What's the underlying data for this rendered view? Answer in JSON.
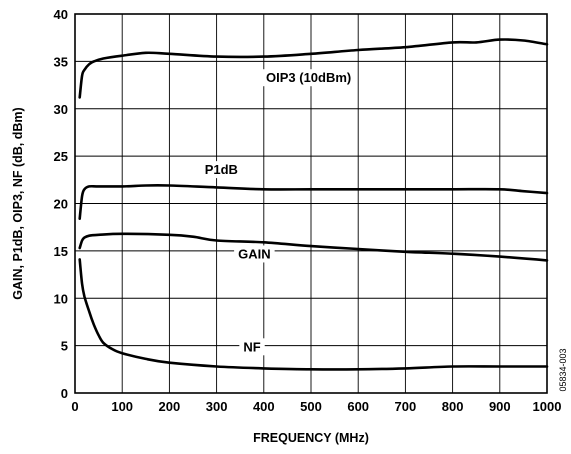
{
  "chart_data": {
    "type": "line",
    "title": "",
    "xlabel": "FREQUENCY (MHz)",
    "ylabel": "GAIN, P1dB, OIP3, NF (dB, dBm)",
    "xlim": [
      0,
      1000
    ],
    "ylim": [
      0,
      40
    ],
    "xticks": [
      "0",
      "100",
      "200",
      "300",
      "400",
      "500",
      "600",
      "700",
      "800",
      "900",
      "1000"
    ],
    "yticks": [
      "0",
      "5",
      "10",
      "15",
      "20",
      "25",
      "30",
      "35",
      "40"
    ],
    "grid": true,
    "legend": "inline labels",
    "figure_id": "05834-003",
    "series": [
      {
        "name": "OIP3 (10dBm)",
        "x": [
          10,
          15,
          20,
          30,
          40,
          60,
          100,
          150,
          200,
          300,
          400,
          500,
          600,
          700,
          800,
          850,
          900,
          950,
          1000
        ],
        "y": [
          31.2,
          33.5,
          34.1,
          34.7,
          35.0,
          35.3,
          35.6,
          35.9,
          35.8,
          35.5,
          35.5,
          35.8,
          36.2,
          36.5,
          37.0,
          37.0,
          37.3,
          37.2,
          36.8
        ]
      },
      {
        "name": "P1dB",
        "x": [
          10,
          15,
          20,
          30,
          50,
          100,
          150,
          200,
          300,
          400,
          500,
          600,
          700,
          800,
          900,
          950,
          1000
        ],
        "y": [
          18.4,
          20.8,
          21.5,
          21.8,
          21.8,
          21.8,
          21.9,
          21.9,
          21.7,
          21.5,
          21.5,
          21.5,
          21.5,
          21.5,
          21.5,
          21.3,
          21.1
        ]
      },
      {
        "name": "GAIN",
        "x": [
          10,
          15,
          20,
          30,
          50,
          100,
          200,
          250,
          300,
          400,
          500,
          600,
          700,
          800,
          900,
          1000
        ],
        "y": [
          15.3,
          16.1,
          16.4,
          16.6,
          16.7,
          16.8,
          16.7,
          16.5,
          16.1,
          15.9,
          15.5,
          15.2,
          14.9,
          14.7,
          14.4,
          14.0
        ]
      },
      {
        "name": "NF",
        "x": [
          10,
          15,
          20,
          30,
          40,
          50,
          60,
          80,
          100,
          150,
          200,
          300,
          400,
          500,
          600,
          700,
          800,
          900,
          1000
        ],
        "y": [
          14.1,
          11.5,
          10.2,
          8.6,
          7.2,
          6.1,
          5.3,
          4.6,
          4.2,
          3.6,
          3.2,
          2.8,
          2.6,
          2.5,
          2.5,
          2.6,
          2.8,
          2.8,
          2.8
        ]
      }
    ]
  }
}
